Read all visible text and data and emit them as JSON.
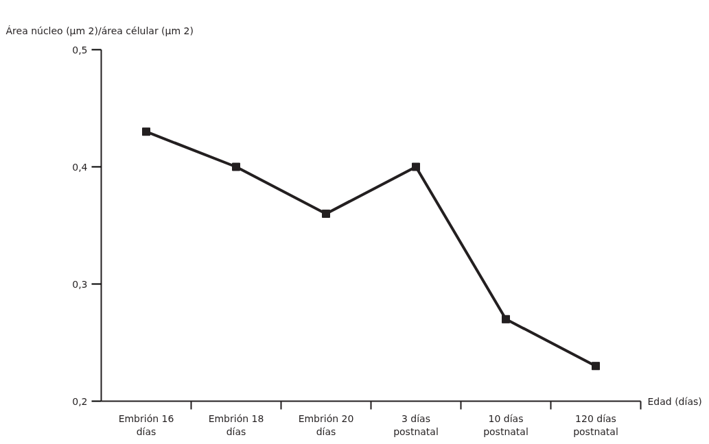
{
  "chart_data": {
    "type": "line",
    "categories": [
      "Embrión 16 días",
      "Embrión 18 días",
      "Embrión 20 días",
      "3 días postnatal",
      "10 días postnatal",
      "120 días postnatal"
    ],
    "series": [
      {
        "color": "#231f20",
        "values": [
          0.43,
          0.4,
          0.36,
          0.4,
          0.27,
          0.23
        ]
      }
    ],
    "xlabel": "Edad (días)",
    "ylabel": "Área núcleo (µm 2)/área célular (µm 2)",
    "ylim": [
      0.2,
      0.5
    ],
    "yticks": [
      {
        "value": 0.2,
        "label": "0,2"
      },
      {
        "value": 0.3,
        "label": "0,3"
      },
      {
        "value": 0.4,
        "label": "0,4"
      },
      {
        "value": 0.5,
        "label": "0,5"
      }
    ],
    "marker": "square",
    "line_style": "solid",
    "grid": false
  }
}
